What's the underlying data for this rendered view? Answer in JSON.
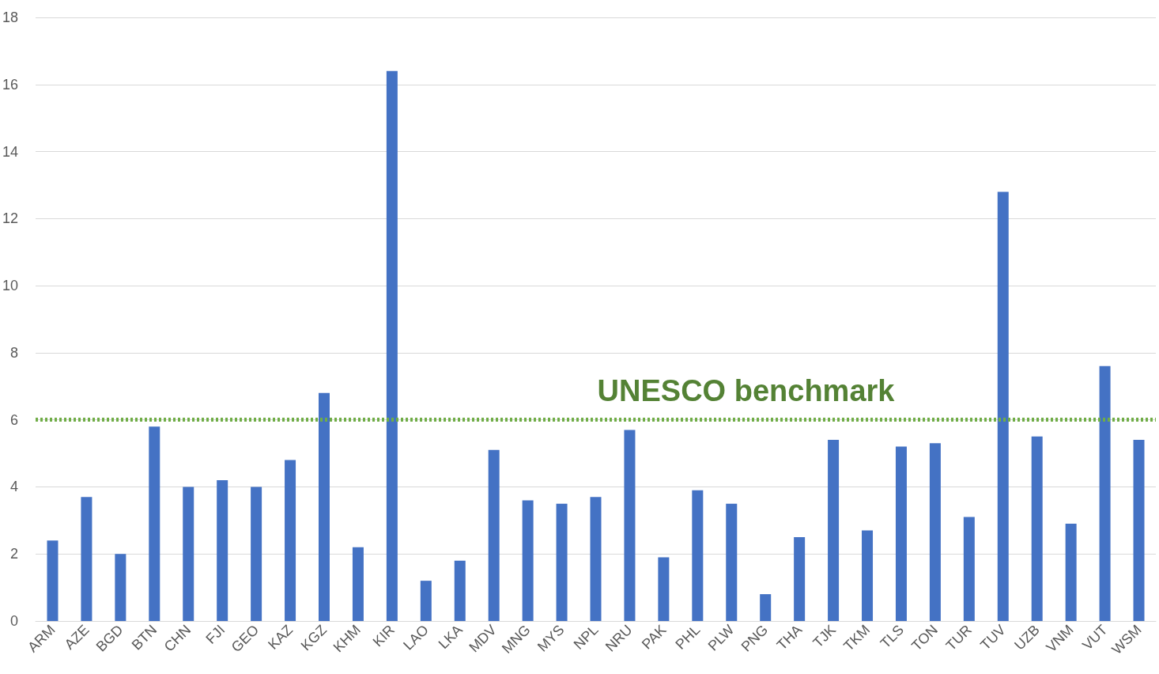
{
  "chart_data": {
    "type": "bar",
    "categories": [
      "ARM",
      "AZE",
      "BGD",
      "BTN",
      "CHN",
      "FJI",
      "GEO",
      "KAZ",
      "KGZ",
      "KHM",
      "KIR",
      "LAO",
      "LKA",
      "MDV",
      "MNG",
      "MYS",
      "NPL",
      "NRU",
      "PAK",
      "PHL",
      "PLW",
      "PNG",
      "THA",
      "TJK",
      "TKM",
      "TLS",
      "TON",
      "TUR",
      "TUV",
      "UZB",
      "VNM",
      "VUT",
      "WSM"
    ],
    "values": [
      2.4,
      3.7,
      2.0,
      5.8,
      4.0,
      4.2,
      4.0,
      4.8,
      6.8,
      2.2,
      16.4,
      1.2,
      1.8,
      5.1,
      3.6,
      3.5,
      3.7,
      5.7,
      1.9,
      3.9,
      3.5,
      0.8,
      2.5,
      5.4,
      2.7,
      5.2,
      5.3,
      3.1,
      12.8,
      5.5,
      2.9,
      7.6,
      5.4
    ],
    "color": "#4472c4",
    "ylim": [
      0,
      18
    ],
    "yticks": [
      0,
      2,
      4,
      6,
      8,
      10,
      12,
      14,
      16,
      18
    ],
    "grid": "y",
    "ref_lines": [
      {
        "axis": "y",
        "value": 6,
        "label": "UNESCO benchmark",
        "color": "#70ad47",
        "line_style": "dotted"
      }
    ]
  }
}
